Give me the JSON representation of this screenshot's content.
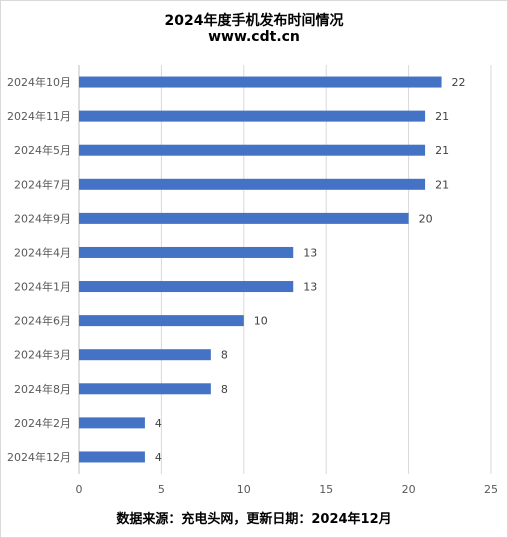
{
  "chart_data": {
    "type": "bar",
    "orientation": "horizontal",
    "title": "2024年度手机发布时间情况",
    "subtitle": "www.cdt.cn",
    "categories": [
      "2024年10月",
      "2024年11月",
      "2024年5月",
      "2024年7月",
      "2024年9月",
      "2024年4月",
      "2024年1月",
      "2024年6月",
      "2024年3月",
      "2024年8月",
      "2024年2月",
      "2024年12月"
    ],
    "values": [
      22,
      21,
      21,
      21,
      20,
      13,
      13,
      10,
      8,
      8,
      4,
      4
    ],
    "xlim": [
      0,
      25
    ],
    "xticks": [
      0,
      5,
      10,
      15,
      20,
      25
    ],
    "grid": true,
    "data_labels": true,
    "bar_color": "#4472C4",
    "source": "数据来源：充电头网，更新日期：2024年12月"
  }
}
